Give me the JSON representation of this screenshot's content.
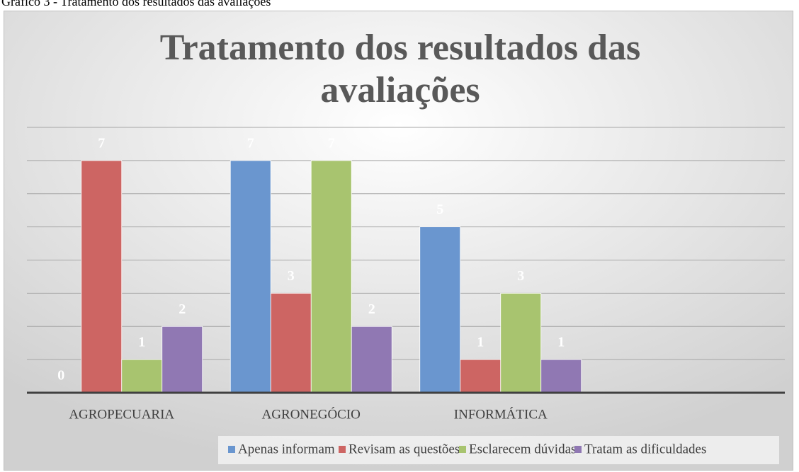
{
  "caption": "Gráfico 3 - Tratamento dos resultados das avaliações",
  "chart_data": {
    "type": "bar",
    "title": "Tratamento dos resultados das avaliações",
    "categories": [
      "AGROPECUARIA",
      "AGRONEGÓCIO",
      "INFORMÁTICA",
      null
    ],
    "series": [
      {
        "name": "Apenas informam",
        "color": "#6a96cf",
        "values": [
          0,
          7,
          5,
          null
        ]
      },
      {
        "name": "Revisam as questões",
        "color": "#cd6563",
        "values": [
          7,
          3,
          1,
          null
        ]
      },
      {
        "name": "Esclarecem dúvidas",
        "color": "#a8c46f",
        "values": [
          1,
          7,
          3,
          null
        ]
      },
      {
        "name": "Tratam as dificuldades",
        "color": "#9078b3",
        "values": [
          2,
          2,
          1,
          null
        ]
      }
    ],
    "ylim": [
      0,
      8
    ],
    "yticks": [
      0,
      1,
      2,
      3,
      4,
      5,
      6,
      7,
      8
    ],
    "grid": true,
    "legend": "bottom"
  }
}
